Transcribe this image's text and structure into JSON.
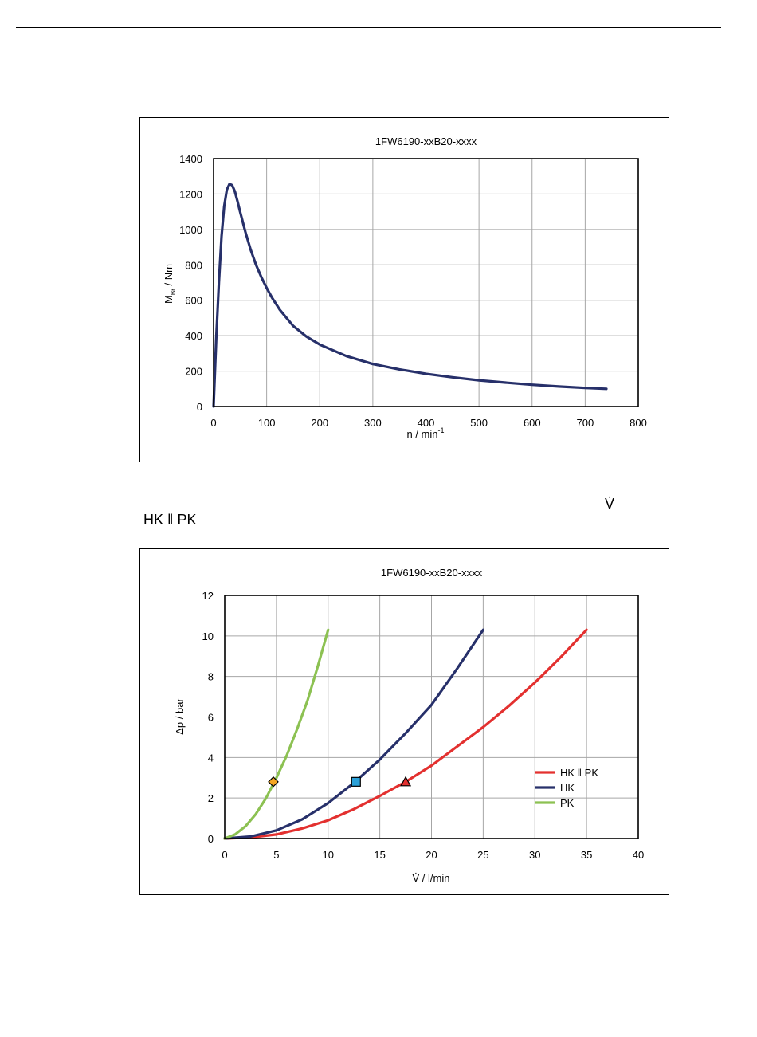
{
  "heading_labels": {
    "vdot": "V̇",
    "hk_pk": "HK ‖ PK"
  },
  "chart_data": [
    {
      "type": "line",
      "title": "1FW6190-xxB20-xxxx",
      "xlabel_main": "n / min",
      "xlabel_sup": "-1",
      "ylabel_main": "M",
      "ylabel_sub": "Br",
      "ylabel_tail": " / Nm",
      "xlim": [
        0,
        800
      ],
      "ylim": [
        0,
        1400
      ],
      "xticks": [
        0,
        100,
        200,
        300,
        400,
        500,
        600,
        700,
        800
      ],
      "yticks": [
        0,
        200,
        400,
        600,
        800,
        1000,
        1200,
        1400
      ],
      "grid": true,
      "series": [
        {
          "color": "#27306a",
          "x": [
            0,
            5,
            10,
            15,
            20,
            25,
            30,
            35,
            40,
            45,
            50,
            60,
            70,
            80,
            90,
            100,
            110,
            125,
            150,
            175,
            200,
            250,
            300,
            350,
            400,
            450,
            500,
            550,
            600,
            650,
            700,
            740
          ],
          "y": [
            0,
            380,
            700,
            960,
            1130,
            1225,
            1257,
            1250,
            1215,
            1160,
            1100,
            985,
            885,
            800,
            730,
            670,
            615,
            545,
            455,
            395,
            350,
            285,
            240,
            210,
            185,
            165,
            148,
            135,
            123,
            113,
            105,
            100
          ]
        }
      ]
    },
    {
      "type": "line",
      "title": "1FW6190-xxB20-xxxx",
      "xlabel": "V̇ / l/min",
      "ylabel": "Δp / bar",
      "xlim": [
        0,
        40
      ],
      "ylim": [
        0,
        12
      ],
      "xticks": [
        0,
        5,
        10,
        15,
        20,
        25,
        30,
        35,
        40
      ],
      "yticks": [
        0,
        2,
        4,
        6,
        8,
        10,
        12
      ],
      "grid": true,
      "legend_position": "lower-right",
      "series": [
        {
          "name": "HK ‖ PK",
          "color": "#e3302f",
          "x": [
            0,
            2.5,
            5,
            7.5,
            10,
            12.5,
            15,
            17.5,
            20,
            22.5,
            25,
            27.5,
            30,
            32.5,
            35
          ],
          "y": [
            0,
            0.05,
            0.2,
            0.5,
            0.9,
            1.45,
            2.1,
            2.8,
            3.6,
            4.55,
            5.5,
            6.55,
            7.7,
            8.95,
            10.3
          ],
          "marker": {
            "shape": "triangle",
            "x": 17.5,
            "y": 2.8,
            "color": "#e3302f"
          }
        },
        {
          "name": "HK",
          "color": "#27306a",
          "x": [
            0,
            2.5,
            5,
            7.5,
            10,
            12.5,
            15,
            17.5,
            20,
            22.5,
            25
          ],
          "y": [
            0,
            0.1,
            0.4,
            0.95,
            1.75,
            2.75,
            3.9,
            5.2,
            6.6,
            8.4,
            10.3
          ],
          "marker": {
            "shape": "square",
            "x": 12.7,
            "y": 2.8,
            "color": "#2aa0d8"
          }
        },
        {
          "name": "PK",
          "color": "#8cc152",
          "x": [
            0,
            1,
            2,
            3,
            4,
            5,
            6,
            7,
            8,
            9,
            10
          ],
          "y": [
            0,
            0.2,
            0.6,
            1.2,
            2.0,
            3.0,
            4.1,
            5.4,
            6.8,
            8.5,
            10.3
          ],
          "marker": {
            "shape": "diamond",
            "x": 4.7,
            "y": 2.8,
            "color": "#f5a623"
          }
        }
      ]
    }
  ]
}
